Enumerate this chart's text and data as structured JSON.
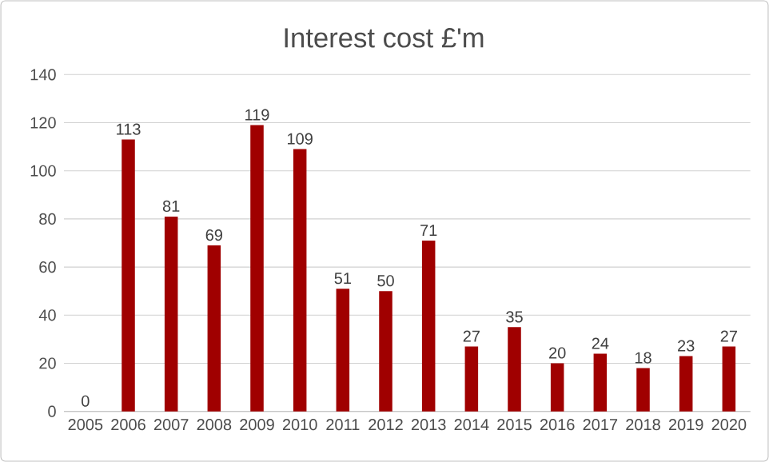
{
  "chart_data": {
    "type": "bar",
    "title": "Interest cost £'m",
    "categories": [
      "2005",
      "2006",
      "2007",
      "2008",
      "2009",
      "2010",
      "2011",
      "2012",
      "2013",
      "2014",
      "2015",
      "2016",
      "2017",
      "2018",
      "2019",
      "2020"
    ],
    "values": [
      0,
      113,
      81,
      69,
      119,
      109,
      51,
      50,
      71,
      27,
      35,
      20,
      24,
      18,
      23,
      27
    ],
    "color": "#a00000",
    "ylim": [
      0,
      140
    ],
    "yticks": [
      0,
      20,
      40,
      60,
      80,
      100,
      120,
      140
    ],
    "grid": "y",
    "data_labels": true
  }
}
